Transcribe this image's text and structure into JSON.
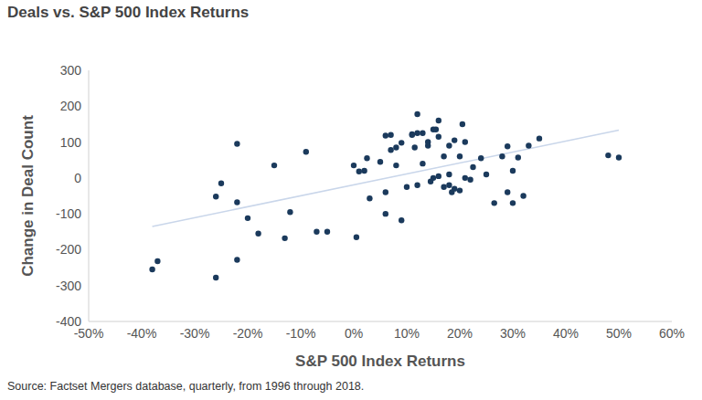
{
  "chart_data": {
    "type": "scatter",
    "title": "Deals vs. S&P 500 Index Returns",
    "x_label": "S&P 500 Index Returns",
    "y_label": "Change in Deal Count",
    "source": "Source: Factset Mergers database, quarterly, from 1996 through 2018.",
    "x": [
      -38,
      -37,
      -26,
      -26,
      -25,
      -22,
      -22,
      -22,
      -20,
      -18,
      -15,
      -13,
      -12,
      -9,
      -7,
      -5,
      0,
      0.5,
      1,
      2,
      2.5,
      3,
      5,
      6,
      6,
      6,
      7,
      7,
      8,
      8,
      9,
      9,
      10,
      11,
      11,
      11.5,
      12,
      12,
      12,
      13,
      13,
      14,
      14,
      14.5,
      15,
      15,
      15.5,
      16,
      16,
      16,
      17,
      17,
      18,
      18,
      18,
      18.5,
      19,
      19,
      20,
      20,
      20.5,
      21,
      21,
      22,
      22.5,
      24,
      25,
      26.5,
      28,
      29,
      29,
      30,
      30,
      31,
      32,
      33,
      35,
      48,
      50
    ],
    "values": [
      -255,
      -232,
      -278,
      -52,
      -15,
      95,
      -68,
      -228,
      -112,
      -155,
      35,
      -168,
      -95,
      73,
      -150,
      -150,
      35,
      -165,
      18,
      20,
      55,
      -57,
      45,
      118,
      -40,
      -100,
      120,
      78,
      35,
      85,
      -118,
      98,
      -25,
      122,
      120,
      85,
      125,
      178,
      -20,
      125,
      40,
      100,
      90,
      -10,
      135,
      0,
      135,
      160,
      115,
      5,
      60,
      -25,
      -20,
      10,
      90,
      -40,
      -30,
      105,
      -35,
      60,
      150,
      100,
      0,
      -5,
      30,
      55,
      10,
      -70,
      60,
      88,
      -40,
      -70,
      20,
      57,
      -50,
      90,
      110,
      63,
      57
    ],
    "color": "#1b3a5c",
    "trend_line": {
      "x": [
        -38,
        50
      ],
      "values": [
        -135,
        133
      ],
      "color": "#c9d6ea"
    },
    "xlim": [
      -50,
      60
    ],
    "xticks": [
      {
        "value": -50,
        "label": "-50%"
      },
      {
        "value": -40,
        "label": "-40%"
      },
      {
        "value": -30,
        "label": "-30%"
      },
      {
        "value": -20,
        "label": "-20%"
      },
      {
        "value": -10,
        "label": "-10%"
      },
      {
        "value": 0,
        "label": "0%"
      },
      {
        "value": 10,
        "label": "10%"
      },
      {
        "value": 20,
        "label": "20%"
      },
      {
        "value": 30,
        "label": "30%"
      },
      {
        "value": 40,
        "label": "40%"
      },
      {
        "value": 50,
        "label": "50%"
      },
      {
        "value": 60,
        "label": "60%"
      }
    ],
    "ylim": [
      -400,
      300
    ],
    "yticks": [
      -400,
      -300,
      -200,
      -100,
      0,
      100,
      200,
      300
    ],
    "grid": false
  }
}
